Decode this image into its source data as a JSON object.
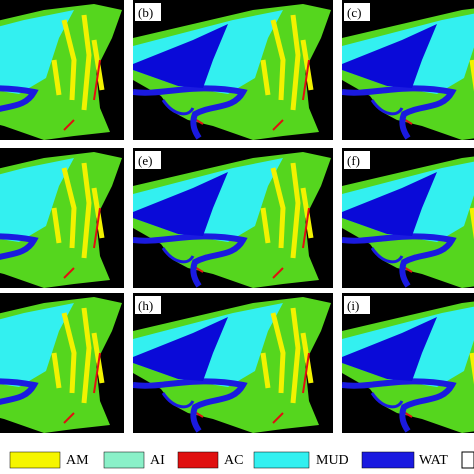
{
  "panels": [
    {
      "label": "(b)"
    },
    {
      "label": "(c)"
    },
    {
      "label": "(e)"
    },
    {
      "label": "(f)"
    },
    {
      "label": "(h)"
    },
    {
      "label": "(i)"
    }
  ],
  "legend": [
    {
      "label": "AM"
    },
    {
      "label": "AI"
    },
    {
      "label": "AC"
    },
    {
      "label": "MUD"
    },
    {
      "label": "WAT"
    }
  ]
}
